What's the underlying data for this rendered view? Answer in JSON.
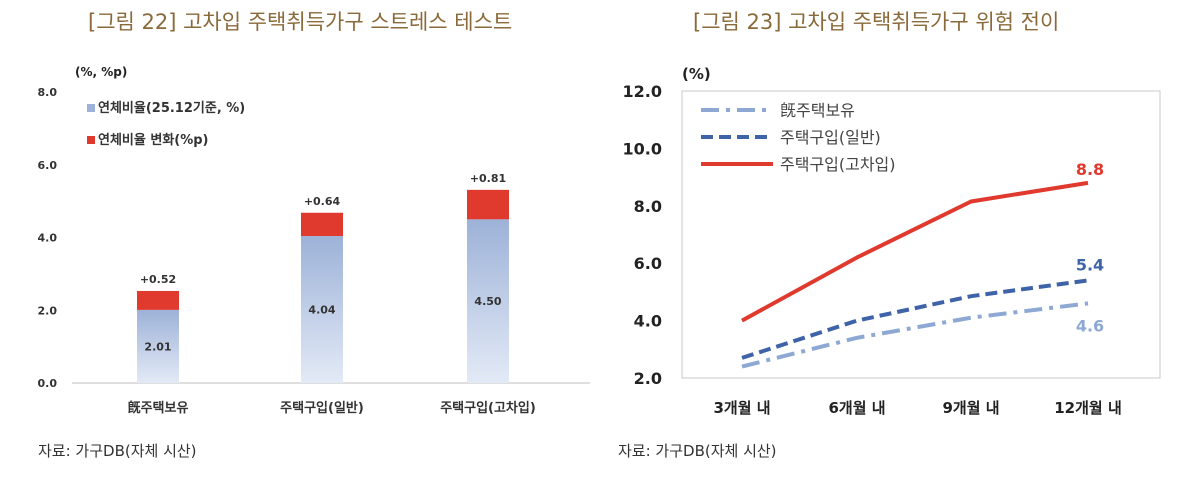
{
  "left": {
    "title": "[그림 22]  고차입 주택취득가구 스트레스 테스트",
    "source": "자료:  가구DB(자체 시산)",
    "unit_label": "(%, %p)",
    "colors": {
      "base": "#9db2d8",
      "change": "#e0392e"
    }
  },
  "right": {
    "title": "[그림 23] 고차입 주택취득가구 위험 전이",
    "source": "자료:  가구DB(자체 시산)",
    "unit_label": "(%)",
    "colors": {
      "owner": "#8ea8d4",
      "general": "#3f63a8",
      "high": "#e0392e"
    }
  },
  "chart_data": [
    {
      "type": "bar",
      "stacked": true,
      "title": "",
      "categories": [
        "旣주택보유",
        "주택구입(일반)",
        "주택구입(고차입)"
      ],
      "series": [
        {
          "name": "연체비율(25.12기준, %)",
          "values": [
            2.01,
            4.04,
            4.5
          ],
          "labels": [
            "2.01",
            "4.04",
            "4.50"
          ]
        },
        {
          "name": "연체비율 변화(%p)",
          "values": [
            0.52,
            0.64,
            0.81
          ],
          "labels": [
            "+0.52",
            "+0.64",
            "+0.81"
          ]
        }
      ],
      "ylim": [
        0,
        8
      ],
      "yticks": [
        "0.0",
        "2.0",
        "4.0",
        "6.0",
        "8.0"
      ],
      "ylabel": "(%, %p)",
      "legend": "top-left",
      "grid": false
    },
    {
      "type": "line",
      "title": "",
      "categories": [
        "3개월 내",
        "6개월 내",
        "9개월 내",
        "12개월 내"
      ],
      "series": [
        {
          "name": "旣주택보유",
          "style": "dashdot",
          "values": [
            2.4,
            3.4,
            4.1,
            4.6
          ],
          "end_label": "4.6"
        },
        {
          "name": "주택구입(일반)",
          "style": "dashed",
          "values": [
            2.7,
            4.0,
            4.85,
            5.4
          ],
          "end_label": "5.4"
        },
        {
          "name": "주택구입(고차입)",
          "style": "solid",
          "values": [
            4.0,
            6.2,
            8.15,
            8.8
          ],
          "end_label": "8.8"
        }
      ],
      "ylim": [
        2,
        12
      ],
      "yticks": [
        "2.0",
        "4.0",
        "6.0",
        "8.0",
        "10.0",
        "12.0"
      ],
      "ylabel": "(%)",
      "legend": "top-left",
      "grid": false
    }
  ]
}
